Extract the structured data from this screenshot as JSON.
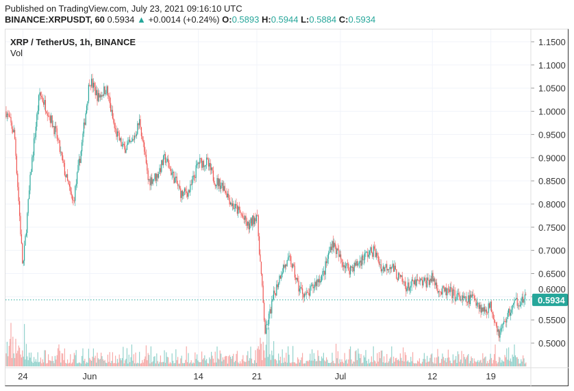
{
  "header": {
    "published": "Published on TradingView.com, July 23, 2021 09:16:10 UTC",
    "symbol": "BINANCE:XRPUSDT, 60",
    "last": "0.5934",
    "arrow": "▲",
    "change": "+0.0014 (+0.24%)",
    "o_label": "O:",
    "o": "0.5893",
    "h_label": "H:",
    "h": "0.5944",
    "l_label": "L:",
    "l": "0.5884",
    "c_label": "C:",
    "c": "0.5934"
  },
  "legend": {
    "title": "XRP / TetherUS, 1h, BINANCE",
    "vol": "Vol"
  },
  "colors": {
    "up": "#26a69a",
    "down": "#ef5350",
    "grid": "#f0f3fa"
  },
  "chart_data": {
    "type": "candlestick",
    "title": "XRP / TetherUS, 1h, BINANCE",
    "ylim": [
      0.47,
      1.17
    ],
    "y_ticks": [
      "1.1500",
      "1.1000",
      "1.0500",
      "1.0000",
      "0.9500",
      "0.9000",
      "0.8500",
      "0.8000",
      "0.7500",
      "0.7000",
      "0.6500",
      "0.6000",
      "0.5500",
      "0.5000"
    ],
    "x_ticks": [
      {
        "label": "24",
        "day": -8
      },
      {
        "label": "Jun",
        "day": 0
      },
      {
        "label": "14",
        "day": 13
      },
      {
        "label": "21",
        "day": 20
      },
      {
        "label": "Jul",
        "day": 30
      },
      {
        "label": "12",
        "day": 41
      },
      {
        "label": "19",
        "day": 48
      }
    ],
    "last_price": "0.5934",
    "close_path_day_offset_from_jun1": [
      -10,
      -9,
      -8,
      -7,
      -6,
      -5,
      -4,
      -3,
      -2,
      -1,
      0,
      1,
      2,
      3,
      4,
      5,
      6,
      7,
      8,
      9,
      10,
      11,
      12,
      13,
      14,
      15,
      16,
      17,
      18,
      19,
      20,
      21,
      22,
      23,
      24,
      25,
      26,
      27,
      28,
      29,
      30,
      31,
      32,
      33,
      34,
      35,
      36,
      37,
      38,
      39,
      40,
      41,
      42,
      43,
      44,
      45,
      46,
      47,
      48,
      49,
      50,
      51,
      52
    ],
    "close_path": [
      1.0,
      0.95,
      0.66,
      0.88,
      1.04,
      1.0,
      0.95,
      0.87,
      0.8,
      0.92,
      1.07,
      1.03,
      1.05,
      0.96,
      0.92,
      0.93,
      0.98,
      0.85,
      0.86,
      0.9,
      0.86,
      0.82,
      0.83,
      0.89,
      0.89,
      0.85,
      0.84,
      0.8,
      0.78,
      0.75,
      0.78,
      0.52,
      0.6,
      0.66,
      0.68,
      0.62,
      0.6,
      0.63,
      0.65,
      0.72,
      0.68,
      0.66,
      0.67,
      0.69,
      0.7,
      0.66,
      0.67,
      0.64,
      0.62,
      0.63,
      0.63,
      0.64,
      0.61,
      0.61,
      0.6,
      0.59,
      0.6,
      0.57,
      0.58,
      0.52,
      0.56,
      0.59,
      0.593
    ]
  }
}
